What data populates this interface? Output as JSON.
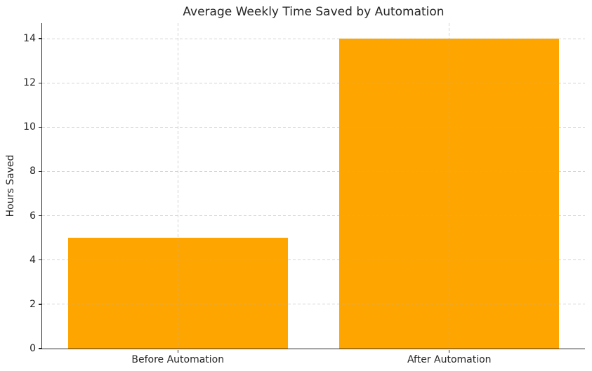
{
  "chart_data": {
    "type": "bar",
    "title": "Average Weekly Time Saved by Automation",
    "xlabel": "",
    "ylabel": "Hours Saved",
    "categories": [
      "Before Automation",
      "After Automation"
    ],
    "values": [
      5,
      14
    ],
    "yticks": [
      0,
      2,
      4,
      6,
      8,
      10,
      12,
      14
    ],
    "ylim": [
      0,
      14.7
    ],
    "grid": true,
    "grid_axis": "both",
    "grid_linestyle": "dashed",
    "legend": "none",
    "style": {
      "bar_color": "#FFA500",
      "grid_color": "#b0b0b0",
      "grid_alpha": 0.55,
      "axis_color": "#2b2b2b",
      "text_color": "#262626",
      "background_color": "#ffffff"
    }
  }
}
